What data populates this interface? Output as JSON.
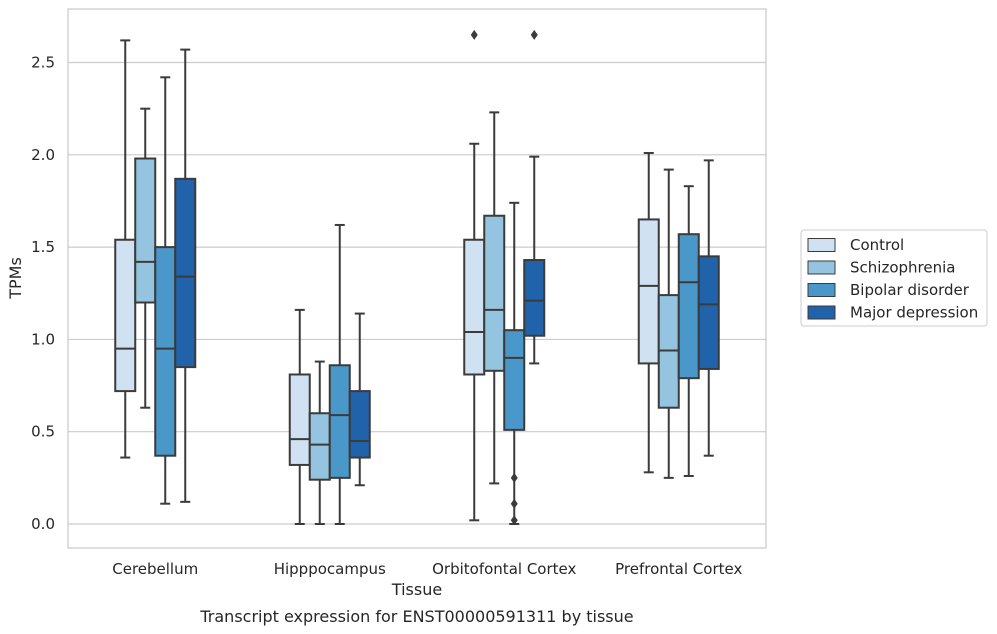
{
  "caption": "Transcript expression for ENST00000591311 by tissue",
  "chart_data": {
    "type": "boxplot",
    "xlabel": "Tissue",
    "ylabel": "TPMs",
    "ylim": [
      -0.13,
      2.79
    ],
    "yticks": [
      0.0,
      0.5,
      1.0,
      1.5,
      2.0,
      2.5
    ],
    "ytick_labels": [
      "0.0",
      "0.5",
      "1.0",
      "1.5",
      "2.0",
      "2.5"
    ],
    "grid": "horizontal",
    "legend_position": "right",
    "categories": [
      "Cerebellum",
      "Hipppocampus",
      "Orbitofontal Cortex",
      "Prefrontal Cortex"
    ],
    "series": [
      {
        "name": "Control",
        "color": "#d0e1f2",
        "boxes": [
          {
            "whislo": 0.36,
            "q1": 0.72,
            "med": 0.95,
            "q3": 1.54,
            "whishi": 2.62,
            "fliers": []
          },
          {
            "whislo": 0.0,
            "q1": 0.32,
            "med": 0.46,
            "q3": 0.81,
            "whishi": 1.16,
            "fliers": []
          },
          {
            "whislo": 0.02,
            "q1": 0.81,
            "med": 1.04,
            "q3": 1.54,
            "whishi": 2.06,
            "fliers": [
              2.65
            ]
          },
          {
            "whislo": 0.28,
            "q1": 0.87,
            "med": 1.29,
            "q3": 1.65,
            "whishi": 2.01,
            "fliers": []
          }
        ]
      },
      {
        "name": "Schizophrenia",
        "color": "#94c4df",
        "boxes": [
          {
            "whislo": 0.63,
            "q1": 1.2,
            "med": 1.42,
            "q3": 1.98,
            "whishi": 2.25,
            "fliers": []
          },
          {
            "whislo": 0.0,
            "q1": 0.24,
            "med": 0.43,
            "q3": 0.6,
            "whishi": 0.88,
            "fliers": []
          },
          {
            "whislo": 0.22,
            "q1": 0.83,
            "med": 1.16,
            "q3": 1.67,
            "whishi": 2.23,
            "fliers": []
          },
          {
            "whislo": 0.25,
            "q1": 0.63,
            "med": 0.94,
            "q3": 1.24,
            "whishi": 1.92,
            "fliers": []
          }
        ]
      },
      {
        "name": "Bipolar disorder",
        "color": "#4a98c9",
        "boxes": [
          {
            "whislo": 0.11,
            "q1": 0.37,
            "med": 0.95,
            "q3": 1.5,
            "whishi": 2.42,
            "fliers": []
          },
          {
            "whislo": 0.0,
            "q1": 0.25,
            "med": 0.59,
            "q3": 0.86,
            "whishi": 1.62,
            "fliers": []
          },
          {
            "whislo": 0.0,
            "q1": 0.51,
            "med": 0.9,
            "q3": 1.05,
            "whishi": 1.74,
            "fliers": [
              0.25,
              0.11,
              0.02
            ]
          },
          {
            "whislo": 0.26,
            "q1": 0.79,
            "med": 1.31,
            "q3": 1.57,
            "whishi": 1.83,
            "fliers": []
          }
        ]
      },
      {
        "name": "Major depression",
        "color": "#2163aa",
        "boxes": [
          {
            "whislo": 0.12,
            "q1": 0.85,
            "med": 1.34,
            "q3": 1.87,
            "whishi": 2.57,
            "fliers": []
          },
          {
            "whislo": 0.21,
            "q1": 0.36,
            "med": 0.45,
            "q3": 0.72,
            "whishi": 1.14,
            "fliers": []
          },
          {
            "whislo": 0.87,
            "q1": 1.02,
            "med": 1.21,
            "q3": 1.43,
            "whishi": 1.99,
            "fliers": [
              2.65
            ]
          },
          {
            "whislo": 0.37,
            "q1": 0.84,
            "med": 1.19,
            "q3": 1.45,
            "whishi": 1.97,
            "fliers": []
          }
        ]
      }
    ]
  }
}
